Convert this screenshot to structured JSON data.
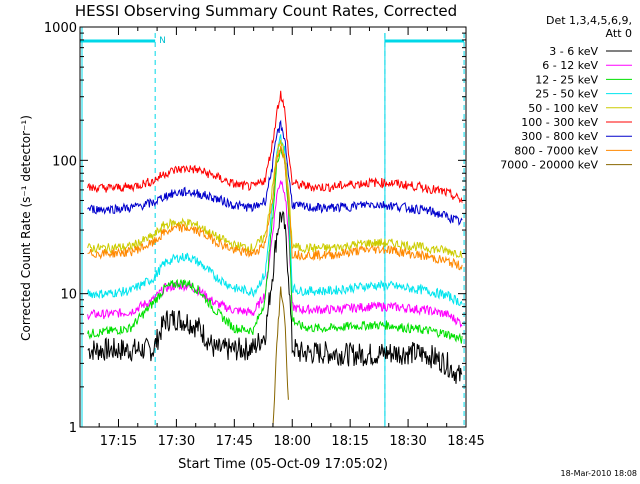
{
  "chart_data": {
    "type": "line",
    "title": "HESSI Observing Summary Count Rates, Corrected",
    "xlabel": "Start Time (05-Oct-09 17:05:02)",
    "ylabel": "Corrected Count Rate (s⁻¹ detector⁻¹)",
    "footer": "18-Mar-2010 18:08",
    "detector_header": [
      "Det 1,3,4,5,6,9,",
      "Att 0"
    ],
    "night_flag": "N",
    "y_scale": "log",
    "ylim": [
      1,
      1000
    ],
    "y_ticks": [
      {
        "value": 1,
        "label": "1"
      },
      {
        "value": 10,
        "label": "10"
      },
      {
        "value": 100,
        "label": "100"
      },
      {
        "value": 1000,
        "label": "1000"
      }
    ],
    "xlim": [
      "17:05:02",
      "18:45:00"
    ],
    "x_ticks": [
      {
        "time": "17:15",
        "label": "17:15"
      },
      {
        "time": "17:30",
        "label": "17:30"
      },
      {
        "time": "17:45",
        "label": "17:45"
      },
      {
        "time": "18:00",
        "label": "18:00"
      },
      {
        "time": "18:15",
        "label": "18:15"
      },
      {
        "time": "18:30",
        "label": "18:30"
      },
      {
        "time": "18:45",
        "label": "18:45"
      }
    ],
    "x": [
      "17:07",
      "17:12",
      "17:18",
      "17:24",
      "17:27",
      "17:30",
      "17:33",
      "17:36",
      "17:40",
      "17:45",
      "17:50",
      "17:53",
      "17:55",
      "17:56",
      "17:57",
      "17:58",
      "17:59",
      "18:00",
      "18:02",
      "18:06",
      "18:10",
      "18:15",
      "18:20",
      "18:25",
      "18:30",
      "18:35",
      "18:40",
      "18:44"
    ],
    "series": [
      {
        "name": "3 - 6 keV",
        "color": "#000000",
        "values": [
          3.8,
          3.8,
          3.8,
          3.8,
          6.3,
          6.5,
          6.2,
          5.5,
          3.8,
          3.8,
          3.9,
          5,
          15,
          28,
          40,
          32,
          15,
          4,
          3.6,
          3.6,
          3.6,
          3.5,
          3.5,
          3.6,
          3.6,
          3.5,
          3,
          2.3
        ]
      },
      {
        "name": "6 - 12 keV",
        "color": "#ff00ff",
        "values": [
          7,
          7,
          7.3,
          9,
          11,
          11.5,
          11.5,
          10.5,
          8.5,
          7.5,
          7.2,
          10,
          30,
          55,
          72,
          60,
          30,
          8,
          7.6,
          7.6,
          7.6,
          7.8,
          8,
          8,
          7.8,
          7.5,
          7,
          6
        ]
      },
      {
        "name": "12 - 25 keV",
        "color": "#00e000",
        "values": [
          5,
          5.2,
          5.5,
          8.5,
          11,
          12,
          12,
          10.5,
          7.5,
          5.5,
          5.3,
          9,
          40,
          95,
          125,
          100,
          45,
          6.5,
          5.7,
          5.5,
          5.5,
          5.7,
          5.8,
          5.8,
          5.5,
          5.3,
          5,
          4.5
        ]
      },
      {
        "name": "25 - 50 keV",
        "color": "#00e5ee",
        "values": [
          10,
          10,
          10.5,
          13,
          17,
          18.5,
          19,
          17,
          13.5,
          11,
          10.3,
          14,
          50,
          110,
          150,
          120,
          55,
          11,
          10.5,
          10.5,
          10.5,
          11,
          11.5,
          11.5,
          11,
          10.5,
          9.7,
          8.5
        ]
      },
      {
        "name": "50 - 100 keV",
        "color": "#cccc00",
        "values": [
          22,
          22,
          22.5,
          27,
          33,
          34,
          34,
          32,
          27,
          23,
          22,
          27,
          65,
          115,
          135,
          115,
          60,
          23,
          22,
          22,
          22,
          23,
          24,
          24,
          23,
          22,
          21,
          20
        ]
      },
      {
        "name": "100 - 300 keV",
        "color": "#ff0000",
        "values": [
          62,
          62,
          63,
          70,
          80,
          85,
          87,
          84,
          76,
          66,
          63,
          72,
          140,
          230,
          320,
          240,
          115,
          68,
          65,
          63,
          63,
          66,
          68,
          68,
          65,
          62,
          57,
          50
        ]
      },
      {
        "name": "300 - 800 keV",
        "color": "#0000cc",
        "values": [
          43,
          43,
          44,
          48,
          54,
          57,
          58,
          56,
          52,
          46,
          44,
          50,
          95,
          155,
          185,
          150,
          80,
          47,
          45,
          44,
          44,
          45,
          47,
          46,
          44,
          42,
          38,
          34
        ]
      },
      {
        "name": "800 - 7000 keV",
        "color": "#ff8800",
        "values": [
          20,
          20,
          20.5,
          24,
          29,
          31,
          31,
          29,
          25,
          21,
          20,
          24,
          55,
          100,
          122,
          100,
          52,
          20,
          19.5,
          19.5,
          19.5,
          20.5,
          21.5,
          21.5,
          20,
          19,
          17.5,
          16
        ]
      },
      {
        "name": "7000 - 20000 keV",
        "color": "#886600",
        "values": [
          null,
          null,
          null,
          null,
          null,
          null,
          null,
          null,
          null,
          null,
          null,
          null,
          1,
          4,
          11,
          7,
          1.5,
          null,
          null,
          null,
          null,
          null,
          null,
          null,
          null,
          null,
          null,
          null
        ]
      }
    ],
    "saa_intervals": [
      {
        "start": "17:05:02",
        "end": "17:24:30"
      },
      {
        "start": "18:24:00",
        "end": "18:44:30"
      }
    ],
    "grid": false,
    "legend_placement": "outside-right"
  }
}
